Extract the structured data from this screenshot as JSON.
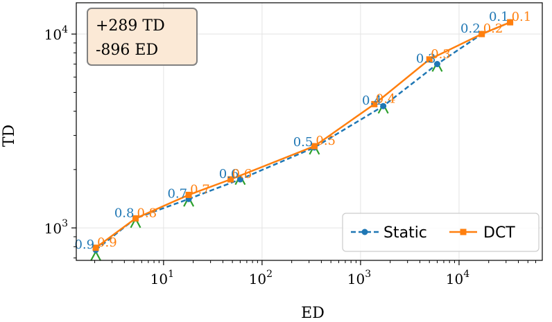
{
  "chart_data": {
    "type": "line",
    "xlabel": "ED",
    "ylabel": "TD",
    "xscale": "log",
    "yscale": "log",
    "xlim": [
      1.3,
      70000
    ],
    "ylim": [
      680,
      14500
    ],
    "grid": true,
    "x_ticks": [
      {
        "value": 10,
        "base": "10",
        "exp": "1"
      },
      {
        "value": 100,
        "base": "10",
        "exp": "2"
      },
      {
        "value": 1000,
        "base": "10",
        "exp": "3"
      },
      {
        "value": 10000,
        "base": "10",
        "exp": "4"
      }
    ],
    "y_ticks": [
      {
        "value": 1000,
        "base": "10",
        "exp": "3"
      },
      {
        "value": 10000,
        "base": "10",
        "exp": "4"
      }
    ],
    "annotation_box": {
      "lines": [
        "+289 TD",
        "-896 ED"
      ]
    },
    "legend": {
      "placement": "lower-right",
      "entries": [
        "Static",
        "DCT"
      ]
    },
    "series": [
      {
        "name": "Static",
        "color": "#1f77b4",
        "marker": "circle",
        "linestyle": "dashed",
        "points": [
          {
            "x": 2.05,
            "y": 770,
            "label": "0.9"
          },
          {
            "x": 5.2,
            "y": 1120,
            "label": "0.8"
          },
          {
            "x": 18,
            "y": 1410,
            "label": "0.7"
          },
          {
            "x": 60,
            "y": 1780,
            "label": "0.6"
          },
          {
            "x": 340,
            "y": 2600,
            "label": "0.5"
          },
          {
            "x": 1700,
            "y": 4250,
            "label": "0.4"
          },
          {
            "x": 6000,
            "y": 7000,
            "label": "0.3"
          },
          {
            "x": 17000,
            "y": 10000,
            "label": "0.2"
          },
          {
            "x": 33000,
            "y": 11500,
            "label": "0.1"
          }
        ]
      },
      {
        "name": "DCT",
        "color": "#ff7f0e",
        "marker": "square",
        "linestyle": "solid",
        "points": [
          {
            "x": 2.05,
            "y": 790,
            "label": "0.9"
          },
          {
            "x": 5.2,
            "y": 1120,
            "label": "0.8"
          },
          {
            "x": 18,
            "y": 1480,
            "label": "0.7"
          },
          {
            "x": 48,
            "y": 1780,
            "label": "0.6"
          },
          {
            "x": 340,
            "y": 2640,
            "label": "0.5"
          },
          {
            "x": 1380,
            "y": 4350,
            "label": "0.4"
          },
          {
            "x": 5000,
            "y": 7400,
            "label": "0.3"
          },
          {
            "x": 17000,
            "y": 10000,
            "label": "0.2"
          },
          {
            "x": 33000,
            "y": 11500,
            "label": "0.1"
          }
        ]
      },
      {
        "color": "#2ca02c",
        "marker": "x",
        "linestyle": "none",
        "points": [
          {
            "x": 2.05,
            "y": 730
          },
          {
            "x": 5.2,
            "y": 1080
          },
          {
            "x": 18,
            "y": 1390
          },
          {
            "x": 60,
            "y": 1800
          },
          {
            "x": 340,
            "y": 2580
          },
          {
            "x": 1700,
            "y": 4200
          },
          {
            "x": 6000,
            "y": 6900
          }
        ]
      }
    ]
  }
}
